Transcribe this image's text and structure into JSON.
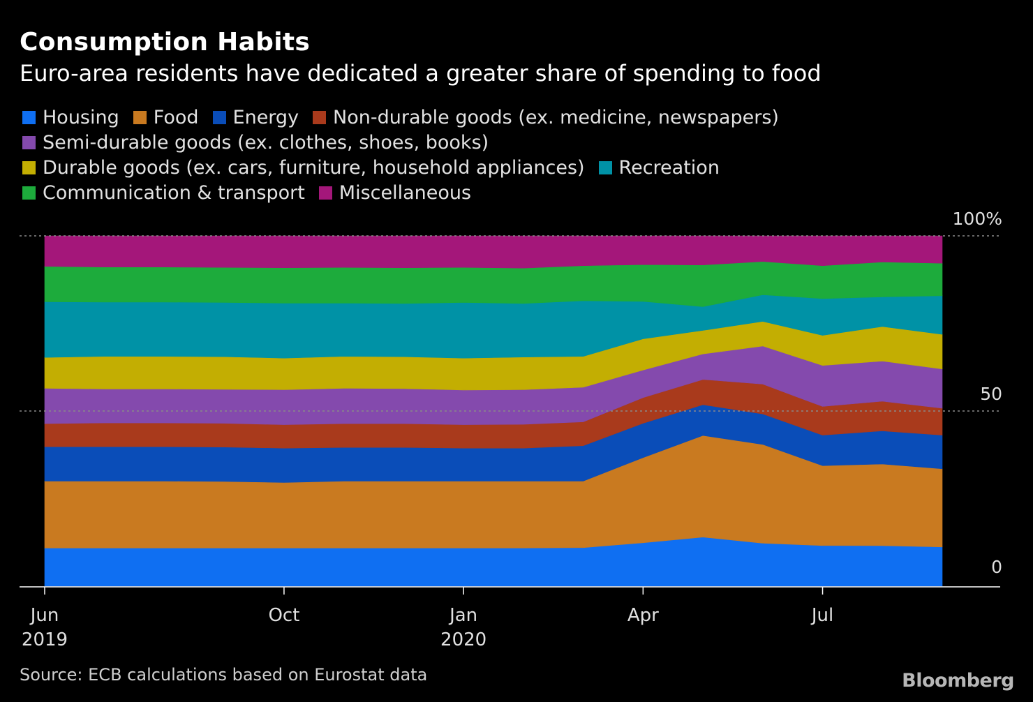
{
  "header": {
    "title": "Consumption Habits",
    "subtitle": "Euro-area residents have dedicated a greater share of spending to food"
  },
  "legend": {
    "rows": [
      [
        {
          "label": "Housing",
          "color": "#0f6ff2"
        },
        {
          "label": "Food",
          "color": "#c97a20"
        },
        {
          "label": "Energy",
          "color": "#0a4db8"
        },
        {
          "label": "Non-durable goods (ex. medicine, newspapers)",
          "color": "#a93a1c"
        }
      ],
      [
        {
          "label": "Semi-durable goods (ex. clothes, shoes, books)",
          "color": "#844aad"
        }
      ],
      [
        {
          "label": "Durable goods (ex. cars, furniture, household appliances)",
          "color": "#c3ae02"
        },
        {
          "label": "Recreation",
          "color": "#0092a6"
        }
      ],
      [
        {
          "label": "Communication & transport",
          "color": "#1dab3c"
        },
        {
          "label": "Miscellaneous",
          "color": "#a4177a"
        }
      ]
    ]
  },
  "chart_data": {
    "type": "area",
    "stacked": true,
    "x": [
      "2019-06",
      "2019-07",
      "2019-08",
      "2019-09",
      "2019-10",
      "2019-11",
      "2019-12",
      "2020-01",
      "2020-02",
      "2020-03",
      "2020-04",
      "2020-05",
      "2020-06",
      "2020-07",
      "2020-08",
      "2020-09"
    ],
    "x_tick_labels": [
      {
        "x": "2019-06",
        "line1": "Jun",
        "line2": "2019"
      },
      {
        "x": "2019-10",
        "line1": "Oct",
        "line2": ""
      },
      {
        "x": "2020-01",
        "line1": "Jan",
        "line2": "2020"
      },
      {
        "x": "2020-04",
        "line1": "Apr",
        "line2": ""
      },
      {
        "x": "2020-07",
        "line1": "Jul",
        "line2": ""
      }
    ],
    "y_tick_labels": [
      {
        "value": 100,
        "label": "100%"
      },
      {
        "value": 50,
        "label": "50"
      },
      {
        "value": 0,
        "label": "0"
      }
    ],
    "ylim": [
      0,
      100
    ],
    "grid": true,
    "series": [
      {
        "name": "Housing",
        "color": "#0f6ff2",
        "values": [
          10.9,
          10.9,
          10.9,
          10.9,
          10.9,
          10.9,
          10.9,
          10.9,
          10.9,
          11.0,
          12.4,
          14.0,
          12.4,
          11.6,
          11.6,
          11.2
        ]
      },
      {
        "name": "Food",
        "color": "#c97a20",
        "values": [
          19.1,
          19.1,
          19.1,
          19.0,
          18.7,
          19.1,
          19.1,
          19.1,
          19.1,
          19.0,
          24.3,
          29.0,
          28.5,
          22.8,
          23.4,
          22.3
        ]
      },
      {
        "name": "Energy",
        "color": "#0a4db8",
        "values": [
          9.8,
          9.8,
          9.8,
          9.8,
          9.8,
          9.6,
          9.6,
          9.4,
          9.4,
          10.1,
          9.8,
          8.8,
          8.8,
          8.7,
          9.5,
          9.6
        ]
      },
      {
        "name": "Non-durable goods (ex. medicine, newspapers)",
        "color": "#a93a1c",
        "values": [
          6.6,
          6.8,
          6.8,
          6.8,
          6.7,
          6.8,
          6.8,
          6.7,
          6.8,
          6.8,
          7.3,
          7.2,
          8.6,
          8.2,
          8.5,
          7.7
        ]
      },
      {
        "name": "Semi-durable goods (ex. clothes, shoes, books)",
        "color": "#844aad",
        "values": [
          10.1,
          9.7,
          9.7,
          9.7,
          10.0,
          10.1,
          10.0,
          9.9,
          9.9,
          9.9,
          7.9,
          7.3,
          11.0,
          11.7,
          11.5,
          11.2
        ]
      },
      {
        "name": "Durable goods (ex. cars, furniture, household appliances)",
        "color": "#c3ae02",
        "values": [
          8.8,
          9.3,
          9.3,
          9.3,
          9.0,
          9.1,
          9.1,
          9.1,
          9.3,
          8.8,
          8.9,
          6.7,
          7.1,
          8.6,
          9.9,
          9.9
        ]
      },
      {
        "name": "Recreation",
        "color": "#0092a6",
        "values": [
          15.9,
          15.5,
          15.5,
          15.5,
          15.7,
          15.2,
          15.2,
          15.9,
          15.3,
          15.9,
          10.7,
          6.8,
          7.7,
          10.5,
          8.5,
          11.0
        ]
      },
      {
        "name": "Communication & transport",
        "color": "#1dab3c",
        "values": [
          10.1,
          10.0,
          10.0,
          10.0,
          10.1,
          10.2,
          10.2,
          10.0,
          10.1,
          10.0,
          10.5,
          11.9,
          9.6,
          9.4,
          10.0,
          9.3
        ]
      },
      {
        "name": "Miscellaneous",
        "color": "#a4177a",
        "values": [
          8.7,
          8.9,
          8.9,
          9.0,
          9.1,
          9.0,
          9.1,
          9.0,
          9.2,
          8.5,
          8.2,
          8.3,
          7.4,
          8.5,
          7.5,
          7.8
        ]
      }
    ]
  },
  "footer": {
    "source": "Source: ECB calculations based on Eurostat data",
    "brand": "Bloomberg"
  }
}
